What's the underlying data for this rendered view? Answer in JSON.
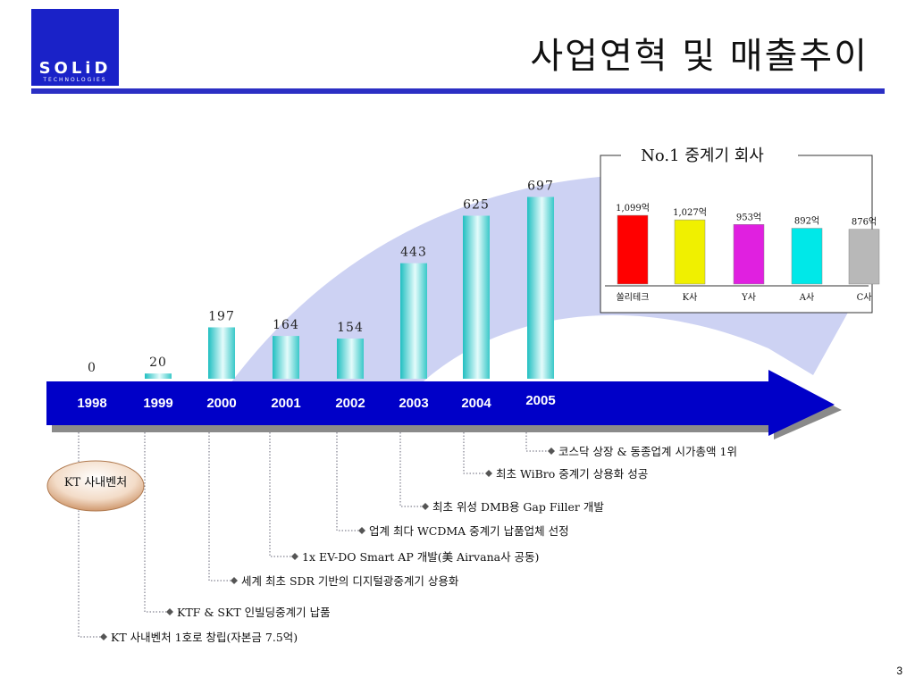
{
  "logo": {
    "name": "SOLiD",
    "sub": "TECHNOLOGIES"
  },
  "title": "사업연혁 및 매출추이",
  "page_number": "3",
  "venture_badge": "KT 사내벤처",
  "colors": {
    "accent": "#1a22c8",
    "arrow": "#0000c8",
    "bar": "#3cc8c8",
    "swoosh": "#c8cdf2"
  },
  "timeline": {
    "years": [
      "1998",
      "1999",
      "2000",
      "2001",
      "2002",
      "2003",
      "2004",
      "2005"
    ]
  },
  "chart_data": [
    {
      "type": "bar",
      "categories": [
        "1998",
        "1999",
        "2000",
        "2001",
        "2002",
        "2003",
        "2004",
        "2005"
      ],
      "values": [
        0,
        20,
        197,
        164,
        154,
        443,
        625,
        697
      ],
      "value_labels": [
        "0",
        "20",
        "197",
        "164",
        "154",
        "443",
        "625",
        "697"
      ],
      "title": "",
      "xlabel": "",
      "ylabel": ""
    },
    {
      "type": "bar",
      "title": "No.1 중계기 회사",
      "categories": [
        "쏠리테크",
        "K사",
        "Y사",
        "A사",
        "C사"
      ],
      "values": [
        1099,
        1027,
        953,
        892,
        876
      ],
      "value_labels": [
        "1,099억",
        "1,027억",
        "953억",
        "892억",
        "876억"
      ],
      "colors": [
        "#ff0000",
        "#f0f000",
        "#e020e0",
        "#00e8e8",
        "#b8b8b8"
      ]
    }
  ],
  "events": [
    "코스닥 상장 & 동종업계 시가총액 1위",
    "최초 WiBro 중계기 상용화 성공",
    "최초 위성 DMB용 Gap Filler 개발",
    "업계 최다 WCDMA 중계기 납품업체 선정",
    "1x EV-DO Smart AP 개발(美 Airvana사 공동)",
    "세계 최초 SDR 기반의 디지털광중계기 상용화",
    "KTF & SKT 인빌딩중계기 납품",
    "KT 사내벤처 1호로 창립(자본금 7.5억)"
  ]
}
